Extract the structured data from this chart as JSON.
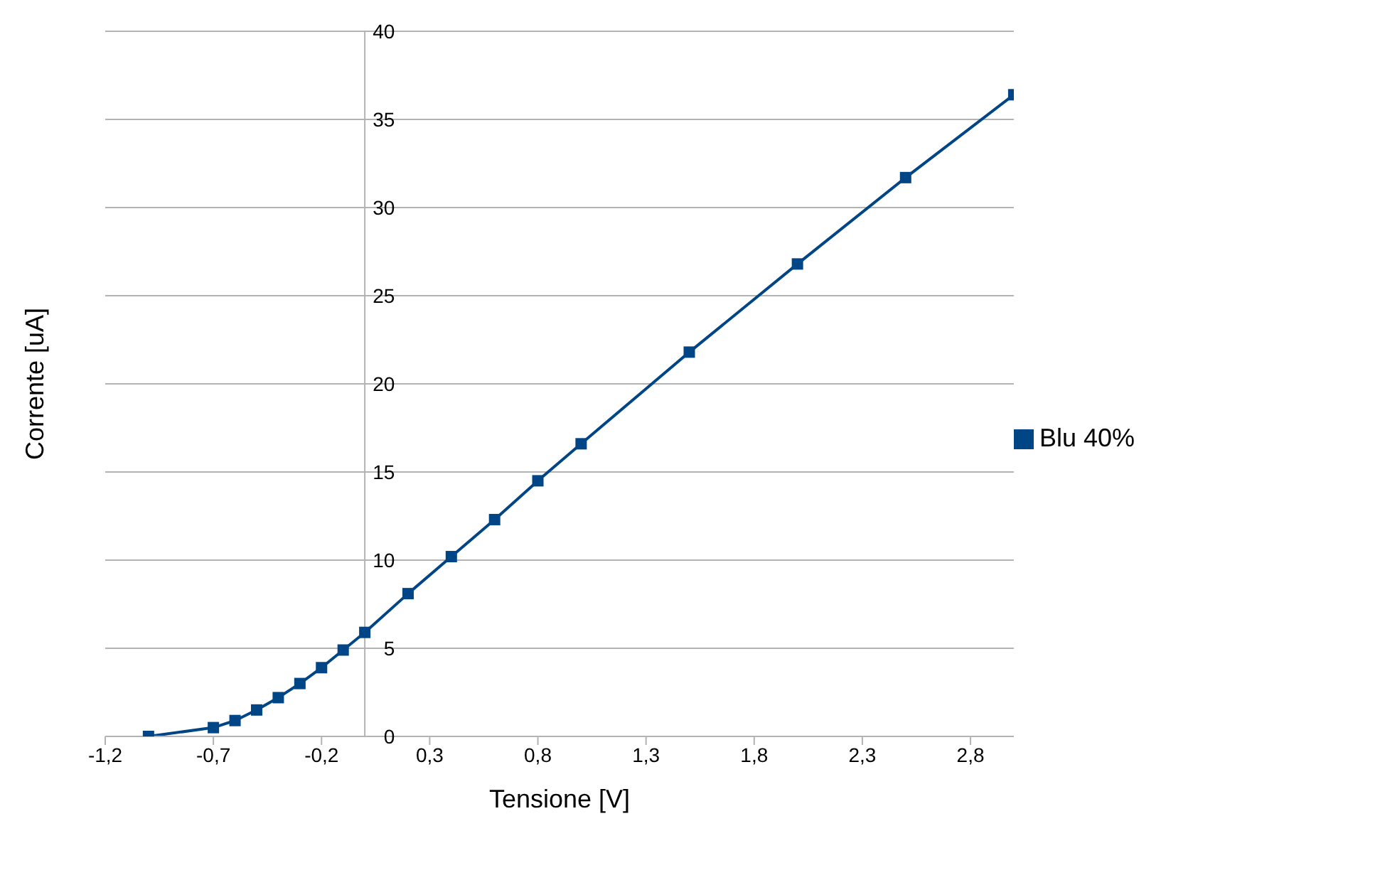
{
  "chart_data": {
    "type": "line",
    "xlabel": "Tensione [V]",
    "ylabel": "Corrente [uA]",
    "x": [
      -1.0,
      -0.7,
      -0.6,
      -0.5,
      -0.4,
      -0.3,
      -0.2,
      -0.1,
      0,
      0.2,
      0.4,
      0.6,
      0.8,
      1.0,
      1.5,
      2.0,
      2.5,
      3.0
    ],
    "series": [
      {
        "name": "Blu 40%",
        "color": "#004586",
        "values": [
          0,
          0.5,
          0.9,
          1.5,
          2.2,
          3.0,
          3.9,
          4.9,
          5.9,
          8.1,
          10.2,
          12.3,
          14.5,
          16.6,
          21.8,
          26.8,
          31.7,
          36.4
        ]
      }
    ],
    "xlim": [
      -1.2,
      3.0
    ],
    "xticks": [
      {
        "value": -1.2,
        "label": "-1,2"
      },
      {
        "value": -0.7,
        "label": "-0,7"
      },
      {
        "value": -0.2,
        "label": "-0,2"
      },
      {
        "value": 0.3,
        "label": "0,3"
      },
      {
        "value": 0.8,
        "label": "0,8"
      },
      {
        "value": 1.3,
        "label": "1,3"
      },
      {
        "value": 1.8,
        "label": "1,8"
      },
      {
        "value": 2.3,
        "label": "2,3"
      },
      {
        "value": 2.8,
        "label": "2,8"
      }
    ],
    "ylim": [
      0,
      40
    ],
    "yticks": [
      0,
      5,
      10,
      15,
      20,
      25,
      30,
      35,
      40
    ],
    "grid": "y",
    "legend": "right",
    "marker": "square",
    "line_style": "solid"
  }
}
